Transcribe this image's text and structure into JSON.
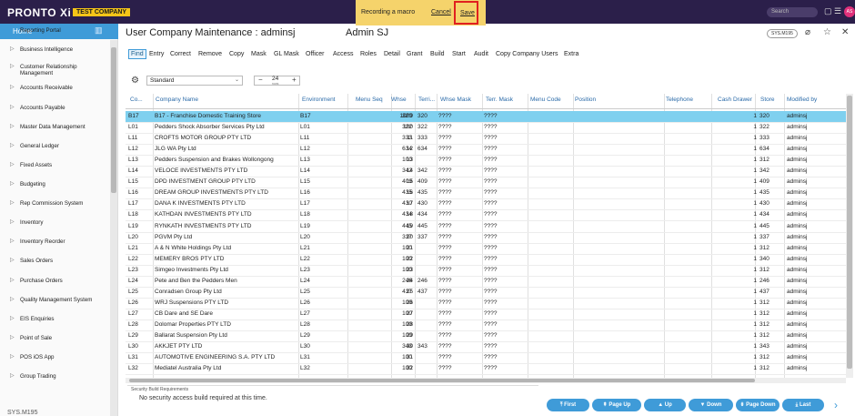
{
  "topbar": {
    "logo": "PRONTO Xi",
    "company": "TEST COMPANY",
    "macro_status": "Recording a macro",
    "cancel_label": "Cancel",
    "save_label": "Save",
    "search_placeholder": "Search",
    "avatar_initials": "AS"
  },
  "sidebar": {
    "home_label": "Home",
    "items": [
      {
        "label": "Reporting Portal",
        "icon": "dot-icon"
      },
      {
        "label": "Business Intelligence",
        "icon": "chevron-right-icon"
      },
      {
        "label": "Customer Relationship Management",
        "icon": "chevron-right-icon"
      },
      {
        "label": "Accounts Receivable",
        "icon": "chevron-right-icon"
      },
      {
        "label": "Accounts Payable",
        "icon": "chevron-right-icon"
      },
      {
        "label": "Master Data Management",
        "icon": "chevron-right-icon"
      },
      {
        "label": "General Ledger",
        "icon": "chevron-right-icon"
      },
      {
        "label": "Fixed Assets",
        "icon": "chevron-right-icon"
      },
      {
        "label": "Budgeting",
        "icon": "chevron-right-icon"
      },
      {
        "label": "Rep Commission System",
        "icon": "chevron-right-icon"
      },
      {
        "label": "Inventory",
        "icon": "chevron-right-icon"
      },
      {
        "label": "Inventory Reorder",
        "icon": "chevron-right-icon"
      },
      {
        "label": "Sales Orders",
        "icon": "chevron-right-icon"
      },
      {
        "label": "Purchase Orders",
        "icon": "chevron-right-icon"
      },
      {
        "label": "Quality Management System",
        "icon": "chevron-right-icon"
      },
      {
        "label": "EIS Enquiries",
        "icon": "chevron-right-icon"
      },
      {
        "label": "Point of Sale",
        "icon": "chevron-right-icon"
      },
      {
        "label": "POS iOS App",
        "icon": "chevron-right-icon"
      },
      {
        "label": "Group Trading",
        "icon": "chevron-right-icon"
      }
    ],
    "footer": "SYS.M195"
  },
  "header": {
    "title": "User Company Maintenance : adminsj",
    "user": "Admin SJ",
    "sys_badge": "SYS.M195"
  },
  "menu": [
    "Find",
    "Entry",
    "Correct",
    "Remove",
    "Copy",
    "Mask",
    "GL Mask",
    "Officer",
    "Access",
    "Roles",
    "Detail",
    "Grant",
    "Build",
    "Start",
    "Audit",
    "Copy Company Users",
    "Extra"
  ],
  "toolbar": {
    "view": "Standard",
    "rows": "24",
    "rows_unit": "rows"
  },
  "grid": {
    "headers": [
      "Co...",
      "Company Name",
      "Environment",
      "Menu Seq",
      "Whse",
      "Terri...",
      "Whse Mask",
      "Terr. Mask",
      "Menu Code",
      "Position",
      "Telephone",
      "Cash Drawer",
      "Store",
      "Modified by"
    ],
    "rows": [
      [
        "B17",
        "B17 - Franchise Domestic Training Store",
        "B17",
        "1009",
        "320",
        "320",
        "????",
        "????",
        "",
        "",
        "",
        "1",
        "320",
        "adminsj"
      ],
      [
        "L01",
        "Pedders Shock Absorber Services Pty Ltd",
        "L01",
        "100",
        "322",
        "322",
        "????",
        "????",
        "",
        "",
        "",
        "1",
        "322",
        "adminsj"
      ],
      [
        "L11",
        "CROFTS MOTOR GROUP PTY LTD",
        "L11",
        "11",
        "333",
        "333",
        "????",
        "????",
        "",
        "",
        "",
        "1",
        "333",
        "adminsj"
      ],
      [
        "L12",
        "JLG WA Pty Ltd",
        "L12",
        "12",
        "634",
        "634",
        "????",
        "????",
        "",
        "",
        "",
        "1",
        "634",
        "adminsj"
      ],
      [
        "L13",
        "Pedders Suspension and Brakes Wollongong",
        "L13",
        "13",
        "100",
        "",
        "????",
        "????",
        "",
        "",
        "",
        "1",
        "312",
        "adminsj"
      ],
      [
        "L14",
        "VELOCE INVESTMENTS PTY LTD",
        "L14",
        "14",
        "342",
        "342",
        "????",
        "????",
        "",
        "",
        "",
        "1",
        "342",
        "adminsj"
      ],
      [
        "L15",
        "DPD INVESTMENT GROUP PTY LTD",
        "L15",
        "15",
        "409",
        "409",
        "????",
        "????",
        "",
        "",
        "",
        "1",
        "409",
        "adminsj"
      ],
      [
        "L16",
        "DREAM GROUP INVESTMENTS PTY LTD",
        "L16",
        "16",
        "435",
        "435",
        "????",
        "????",
        "",
        "",
        "",
        "1",
        "435",
        "adminsj"
      ],
      [
        "L17",
        "DANA K INVESTMENTS PTY LTD",
        "L17",
        "17",
        "430",
        "430",
        "????",
        "????",
        "",
        "",
        "",
        "1",
        "430",
        "adminsj"
      ],
      [
        "L18",
        "KATHDAN INVESTMENTS PTY LTD",
        "L18",
        "18",
        "434",
        "434",
        "????",
        "????",
        "",
        "",
        "",
        "1",
        "434",
        "adminsj"
      ],
      [
        "L19",
        "RYNKATH INVESTMENTS PTY LTD",
        "L19",
        "19",
        "445",
        "445",
        "????",
        "????",
        "",
        "",
        "",
        "1",
        "445",
        "adminsj"
      ],
      [
        "L20",
        "PGVM Pty Ltd",
        "L20",
        "20",
        "337",
        "337",
        "????",
        "????",
        "",
        "",
        "",
        "1",
        "337",
        "adminsj"
      ],
      [
        "L21",
        "A & N White Holdings Pty Ltd",
        "L21",
        "21",
        "100",
        "",
        "????",
        "????",
        "",
        "",
        "",
        "1",
        "312",
        "adminsj"
      ],
      [
        "L22",
        "MEMERY BROS PTY LTD",
        "L22",
        "22",
        "100",
        "",
        "????",
        "????",
        "",
        "",
        "",
        "1",
        "340",
        "adminsj"
      ],
      [
        "L23",
        "Simgeo Investments Pty Ltd",
        "L23",
        "23",
        "100",
        "",
        "????",
        "????",
        "",
        "",
        "",
        "1",
        "312",
        "adminsj"
      ],
      [
        "L24",
        "Pete and Ben the Pedders Men",
        "L24",
        "24",
        "246",
        "246",
        "????",
        "????",
        "",
        "",
        "",
        "1",
        "246",
        "adminsj"
      ],
      [
        "L25",
        "Conradsen Group Pty Ltd",
        "L25",
        "25",
        "437",
        "437",
        "????",
        "????",
        "",
        "",
        "",
        "1",
        "437",
        "adminsj"
      ],
      [
        "L26",
        "WRJ Suspensions PTY LTD",
        "L26",
        "26",
        "100",
        "",
        "????",
        "????",
        "",
        "",
        "",
        "1",
        "312",
        "adminsj"
      ],
      [
        "L27",
        "CB Dare and SE Dare",
        "L27",
        "27",
        "100",
        "",
        "????",
        "????",
        "",
        "",
        "",
        "1",
        "312",
        "adminsj"
      ],
      [
        "L28",
        "Dolomar Properties PTY LTD",
        "L28",
        "28",
        "100",
        "",
        "????",
        "????",
        "",
        "",
        "",
        "1",
        "312",
        "adminsj"
      ],
      [
        "L29",
        "Ballarat Suspension Pty Ltd",
        "L29",
        "29",
        "100",
        "",
        "????",
        "????",
        "",
        "",
        "",
        "1",
        "312",
        "adminsj"
      ],
      [
        "L30",
        "AKKJET PTY LTD",
        "L30",
        "30",
        "343",
        "343",
        "????",
        "????",
        "",
        "",
        "",
        "1",
        "343",
        "adminsj"
      ],
      [
        "L31",
        "AUTOMOTIVE ENGINEERING S.A. PTY LTD",
        "L31",
        "31",
        "100",
        "",
        "????",
        "????",
        "",
        "",
        "",
        "1",
        "312",
        "adminsj"
      ],
      [
        "L32",
        "Mediatel Australia Pty Ltd",
        "L32",
        "32",
        "100",
        "",
        "????",
        "????",
        "",
        "",
        "",
        "1",
        "312",
        "adminsj"
      ]
    ]
  },
  "footer": {
    "security_label": "Security Build Requirements",
    "security_text": "No security access build required at this time.",
    "nav": [
      "First",
      "Page Up",
      "Up",
      "Down",
      "Page Down",
      "Last"
    ]
  },
  "colors": {
    "topbar": "#2b1f4a",
    "accent": "#3f9bd8",
    "selected_row": "#7fd0ef",
    "macro_bar": "#f5d36b",
    "company_badge": "#f5c518"
  }
}
